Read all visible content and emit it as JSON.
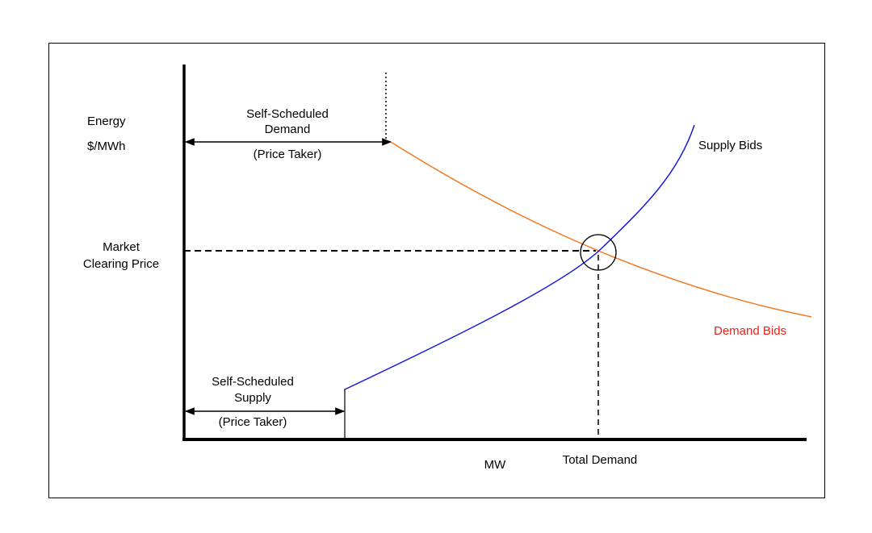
{
  "y_axis_label": {
    "line1": "Energy",
    "line2": "$/MWh"
  },
  "clearing_price_label": {
    "line1": "Market",
    "line2": "Clearing Price"
  },
  "self_scheduled_demand": {
    "line1": "Self-Scheduled",
    "line2": "Demand",
    "line3": "(Price Taker)"
  },
  "self_scheduled_supply": {
    "line1": "Self-Scheduled",
    "line2": "Supply",
    "line3": "(Price Taker)"
  },
  "supply_curve_label": "Supply Bids",
  "demand_curve_label": "Demand Bids",
  "x_axis_label": "MW",
  "total_demand_label": "Total Demand"
}
